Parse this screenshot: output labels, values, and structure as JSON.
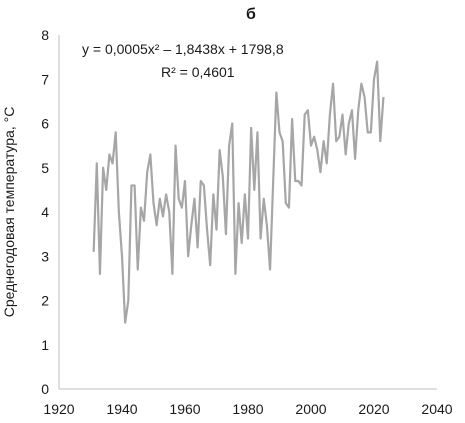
{
  "chart_data": {
    "type": "line",
    "title": "б",
    "xlabel": "",
    "ylabel": "Среднегодовая температура, °С",
    "xlim": [
      1920,
      2040
    ],
    "ylim": [
      0,
      8
    ],
    "x_ticks": [
      1920,
      1940,
      1960,
      1980,
      2000,
      2020,
      2040
    ],
    "y_ticks": [
      0,
      1,
      2,
      3,
      4,
      5,
      6,
      7,
      8
    ],
    "grid": false,
    "legend": "none",
    "annotations": {
      "equation": "y = 0,0005x² – 1,8438x + 1798,8",
      "r_squared": "R² = 0,4601"
    },
    "trendline": {
      "type": "polynomial",
      "a": 0.0005,
      "b": -1.8438,
      "c": 1798.8,
      "x_range": [
        1931,
        2023
      ]
    },
    "series": [
      {
        "color": "#a6a6a6",
        "x": [
          1931,
          1932,
          1933,
          1934,
          1935,
          1936,
          1937,
          1938,
          1939,
          1940,
          1941,
          1942,
          1943,
          1944,
          1945,
          1946,
          1947,
          1948,
          1949,
          1950,
          1951,
          1952,
          1953,
          1954,
          1955,
          1956,
          1957,
          1958,
          1959,
          1960,
          1961,
          1962,
          1963,
          1964,
          1965,
          1966,
          1967,
          1968,
          1969,
          1970,
          1971,
          1972,
          1973,
          1974,
          1975,
          1976,
          1977,
          1978,
          1979,
          1980,
          1981,
          1982,
          1983,
          1984,
          1985,
          1986,
          1987,
          1988,
          1989,
          1990,
          1991,
          1992,
          1993,
          1994,
          1995,
          1996,
          1997,
          1998,
          1999,
          2000,
          2001,
          2002,
          2003,
          2004,
          2005,
          2006,
          2007,
          2008,
          2009,
          2010,
          2011,
          2012,
          2013,
          2014,
          2015,
          2016,
          2017,
          2018,
          2019,
          2020,
          2021,
          2022,
          2023
        ],
        "values": [
          3.1,
          5.1,
          2.6,
          5.0,
          4.5,
          5.3,
          5.1,
          5.8,
          4.0,
          3.0,
          1.5,
          2.0,
          4.6,
          4.6,
          2.7,
          4.1,
          3.8,
          4.9,
          5.3,
          4.2,
          3.7,
          4.3,
          3.9,
          4.4,
          4.0,
          2.6,
          5.5,
          4.3,
          4.1,
          4.7,
          3.0,
          3.7,
          4.3,
          3.2,
          4.7,
          4.6,
          3.6,
          2.8,
          4.4,
          3.6,
          5.4,
          4.8,
          3.5,
          5.5,
          6.0,
          2.6,
          4.2,
          3.3,
          4.4,
          3.4,
          5.9,
          4.5,
          5.8,
          3.4,
          4.3,
          3.7,
          2.7,
          4.7,
          6.7,
          5.8,
          5.6,
          4.2,
          4.1,
          6.1,
          4.7,
          4.7,
          4.6,
          6.2,
          6.3,
          5.5,
          5.7,
          5.4,
          4.9,
          5.6,
          5.1,
          6.2,
          6.9,
          5.6,
          5.7,
          6.2,
          5.3,
          6.0,
          6.3,
          5.2,
          6.3,
          6.9,
          6.6,
          5.8,
          5.8,
          7.0,
          7.4,
          5.6,
          6.6
        ]
      }
    ]
  }
}
